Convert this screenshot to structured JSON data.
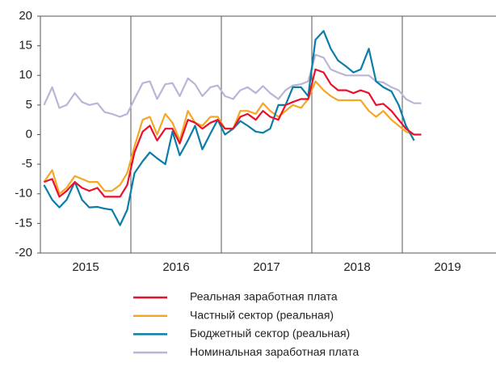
{
  "chart_data": {
    "type": "line",
    "x": [
      2015.04,
      2015.13,
      2015.21,
      2015.29,
      2015.38,
      2015.46,
      2015.54,
      2015.63,
      2015.71,
      2015.79,
      2015.88,
      2015.96,
      2016.04,
      2016.13,
      2016.21,
      2016.29,
      2016.38,
      2016.46,
      2016.54,
      2016.63,
      2016.71,
      2016.79,
      2016.88,
      2016.96,
      2017.04,
      2017.13,
      2017.21,
      2017.29,
      2017.38,
      2017.46,
      2017.54,
      2017.63,
      2017.71,
      2017.79,
      2017.88,
      2017.96,
      2018.04,
      2018.13,
      2018.21,
      2018.29,
      2018.38,
      2018.46,
      2018.54,
      2018.63,
      2018.71,
      2018.79,
      2018.88,
      2018.96,
      2019.04,
      2019.13,
      2019.21
    ],
    "series": [
      {
        "name": "Реальная заработная плата",
        "color": "#e8112d",
        "values": [
          -8,
          -7.5,
          -10.5,
          -9.5,
          -8,
          -9,
          -9.5,
          -9,
          -10.5,
          -10.5,
          -10.5,
          -8.5,
          -3,
          0.5,
          1.5,
          -1,
          1,
          1,
          -1.5,
          2.5,
          2,
          1,
          2,
          2.5,
          1,
          1,
          3,
          3.5,
          2.5,
          4,
          3,
          2.5,
          5,
          5.5,
          6,
          6,
          11,
          10.5,
          8.5,
          7.5,
          7.5,
          7,
          7.5,
          7,
          5,
          5.2,
          4,
          2.5,
          1,
          0,
          0
        ]
      },
      {
        "name": "Частный сектор (реальная)",
        "color": "#f5a623",
        "values": [
          -8,
          -6,
          -10,
          -9,
          -7,
          -7.5,
          -8,
          -8,
          -9.5,
          -9.5,
          -8.5,
          -6.5,
          -2,
          2.5,
          3,
          0,
          3.5,
          2,
          -1,
          4,
          2,
          1.5,
          3,
          3,
          1,
          1,
          4,
          4,
          3.5,
          5.3,
          4,
          3,
          4,
          5,
          4.5,
          6,
          9,
          7.5,
          6.5,
          5.8,
          5.8,
          5.8,
          5.8,
          4,
          3,
          4,
          2.5,
          1.5,
          0.5,
          0,
          null
        ]
      },
      {
        "name": "Бюджетный сектор (реальная)",
        "color": "#0a7ea8",
        "values": [
          -8.5,
          -11,
          -12.3,
          -11,
          -8,
          -11,
          -12.3,
          -12.2,
          -12.5,
          -12.7,
          -15.3,
          -12.7,
          -6.5,
          -4.5,
          -3,
          -4,
          -5,
          0.5,
          -3.5,
          -1,
          1.5,
          -2.5,
          0.2,
          2.5,
          0,
          1,
          2.3,
          1.5,
          0.5,
          0.3,
          1,
          5,
          5,
          8,
          8,
          6.5,
          16,
          17.5,
          14.5,
          12.5,
          11.5,
          10.5,
          11,
          14.5,
          9,
          8,
          7.3,
          5,
          1.5,
          -1,
          null
        ]
      },
      {
        "name": "Номинальная заработная плата",
        "color": "#b9b5d6",
        "values": [
          5,
          8,
          4.5,
          5,
          7,
          5.5,
          5,
          5.3,
          3.8,
          3.5,
          3,
          3.5,
          6,
          8.7,
          9,
          6,
          8.5,
          8.7,
          6.5,
          9.5,
          8.5,
          6.5,
          8,
          8.3,
          6.5,
          6,
          7.5,
          8,
          7,
          8.2,
          7,
          6,
          7.5,
          8.3,
          8.5,
          9,
          13.5,
          13,
          11,
          10.5,
          10,
          10,
          10,
          10,
          9,
          8.8,
          8,
          7.5,
          6,
          5.3,
          5.3
        ]
      }
    ],
    "xlim": [
      2015,
      2020
    ],
    "xticks": [
      {
        "value": 2015.5,
        "label": "2015"
      },
      {
        "value": 2016.5,
        "label": "2016"
      },
      {
        "value": 2017.5,
        "label": "2017"
      },
      {
        "value": 2018.5,
        "label": "2018"
      },
      {
        "value": 2019.5,
        "label": "2019"
      }
    ],
    "xgrid": [
      2016,
      2017,
      2018,
      2019
    ],
    "ylim": [
      -20,
      20
    ],
    "yticks": [
      -20,
      -15,
      -10,
      -5,
      0,
      5,
      10,
      15,
      20
    ]
  }
}
